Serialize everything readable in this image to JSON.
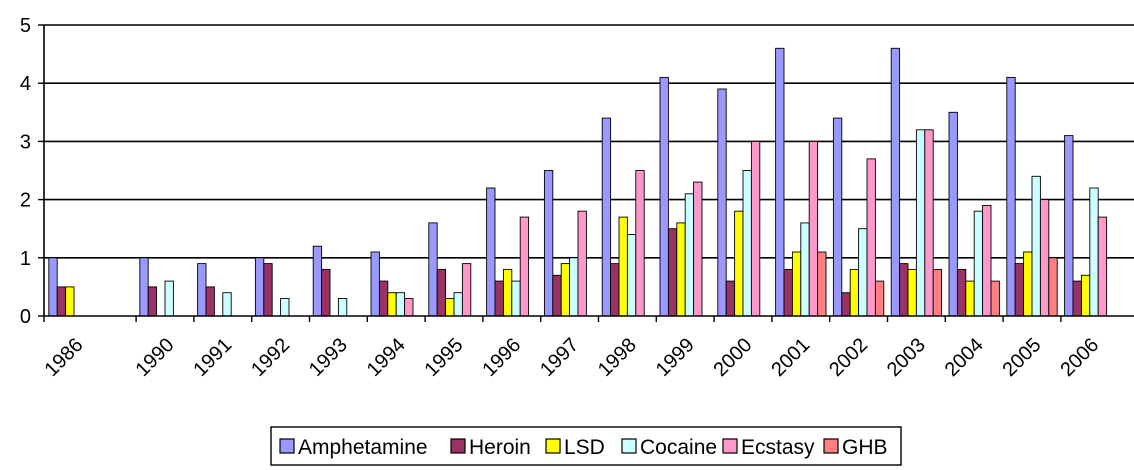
{
  "chart_data": {
    "type": "bar",
    "title": "",
    "xlabel": "",
    "ylabel": "",
    "ylim": [
      0,
      5
    ],
    "yticks": [
      "0",
      "1",
      "2",
      "3",
      "4",
      "5"
    ],
    "grid": true,
    "legend_position": "bottom",
    "categories": [
      "1986",
      "1990",
      "1991",
      "1992",
      "1993",
      "1994",
      "1995",
      "1996",
      "1997",
      "1998",
      "1999",
      "2000",
      "2001",
      "2002",
      "2003",
      "2004",
      "2005",
      "2006"
    ],
    "series": [
      {
        "name": "Amphetamine",
        "color": "#9999ff",
        "values": [
          1.0,
          1.0,
          0.9,
          1.0,
          1.2,
          1.1,
          1.6,
          2.2,
          2.5,
          3.4,
          4.1,
          3.9,
          4.6,
          3.4,
          4.6,
          3.5,
          4.1,
          3.1
        ]
      },
      {
        "name": "Heroin",
        "color": "#993366",
        "values": [
          0.5,
          0.5,
          0.5,
          0.9,
          0.8,
          0.6,
          0.8,
          0.6,
          0.7,
          0.9,
          1.5,
          0.6,
          0.8,
          0.4,
          0.9,
          0.8,
          0.9,
          0.6
        ]
      },
      {
        "name": "LSD",
        "color": "#ffff00",
        "values": [
          0.5,
          null,
          null,
          null,
          null,
          0.4,
          0.3,
          0.8,
          0.9,
          1.7,
          1.6,
          1.8,
          1.1,
          0.8,
          0.8,
          0.6,
          1.1,
          0.7
        ]
      },
      {
        "name": "Cocaine",
        "color": "#ccffff",
        "values": [
          null,
          0.6,
          0.4,
          0.3,
          0.3,
          0.4,
          0.4,
          0.6,
          1.0,
          1.4,
          2.1,
          2.5,
          1.6,
          1.5,
          3.2,
          1.8,
          2.4,
          2.2
        ]
      },
      {
        "name": "Ecstasy",
        "color": "#ff99cc",
        "values": [
          null,
          null,
          null,
          null,
          null,
          0.3,
          0.9,
          1.7,
          1.8,
          2.5,
          2.3,
          3.0,
          3.0,
          2.7,
          3.2,
          1.9,
          2.0,
          1.7
        ]
      },
      {
        "name": "GHB",
        "color": "#ff8080",
        "values": [
          null,
          null,
          null,
          null,
          null,
          null,
          null,
          null,
          null,
          null,
          null,
          null,
          1.1,
          0.6,
          0.8,
          0.6,
          1.0,
          null
        ]
      }
    ]
  }
}
